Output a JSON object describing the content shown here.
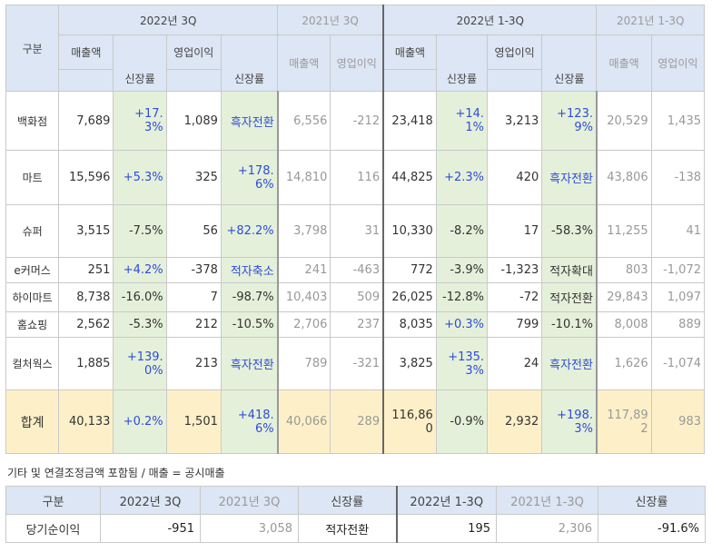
{
  "header": {
    "category": "구분",
    "groups": [
      "2022년 3Q",
      "2021년 3Q",
      "2022년 1-3Q",
      "2021년 1-3Q"
    ],
    "sales": "매출액",
    "op": "영업이익",
    "growth": "신장률"
  },
  "rows": [
    {
      "name": "백화점",
      "v": [
        "7,689",
        "+17.3%",
        "1,089",
        "흑자전환",
        "6,556",
        "-212",
        "23,418",
        "+14.1%",
        "3,213",
        "+123.9%",
        "20,529",
        "1,435"
      ]
    },
    {
      "name": "마트",
      "v": [
        "15,596",
        "+5.3%",
        "325",
        "+178.6%",
        "14,810",
        "116",
        "44,825",
        "+2.3%",
        "420",
        "흑자전환",
        "43,806",
        "-138"
      ]
    },
    {
      "name": "슈퍼",
      "v": [
        "3,515",
        "-7.5%",
        "56",
        "+82.2%",
        "3,798",
        "31",
        "10,330",
        "-8.2%",
        "17",
        "-58.3%",
        "11,255",
        "41"
      ]
    },
    {
      "name": "e커머스",
      "v": [
        "251",
        "+4.2%",
        "-378",
        "적자축소",
        "241",
        "-463",
        "772",
        "-3.9%",
        "-1,323",
        "적자확대",
        "803",
        "-1,072"
      ]
    },
    {
      "name": "하이마트",
      "v": [
        "8,738",
        "-16.0%",
        "7",
        "-98.7%",
        "10,403",
        "509",
        "26,025",
        "-12.8%",
        "-72",
        "적자전환",
        "29,843",
        "1,097"
      ]
    },
    {
      "name": "홈쇼핑",
      "v": [
        "2,562",
        "-5.3%",
        "212",
        "-10.5%",
        "2,706",
        "237",
        "8,035",
        "+0.3%",
        "799",
        "-10.1%",
        "8,008",
        "889"
      ]
    },
    {
      "name": "컬처웍스",
      "v": [
        "1,885",
        "+139.0%",
        "213",
        "흑자전환",
        "789",
        "-321",
        "3,825",
        "+135.3%",
        "24",
        "흑자전환",
        "1,626",
        "-1,074"
      ]
    },
    {
      "name": "합계",
      "v": [
        "40,133",
        "+0.2%",
        "1,501",
        "+418.6%",
        "40,066",
        "289",
        "116,860",
        "-0.9%",
        "2,932",
        "+198.3%",
        "117,892",
        "983"
      ]
    }
  ],
  "note": "기타 및 연결조정금액 포함됨 / 매출 = 공시매출",
  "net": {
    "headers": [
      "구분",
      "2022년 3Q",
      "2021년 3Q",
      "신장률",
      "2022년 1-3Q",
      "2021년 1-3Q",
      "신장률"
    ],
    "values": [
      "당기순이익",
      "-951",
      "3,058",
      "적자전환",
      "195",
      "2,306",
      "-91.6%"
    ]
  },
  "colors": {
    "header_bg": "#dce6f4",
    "growth_bg": "#e5f0da",
    "total_bg": "#fdf0c8",
    "positive_text": "#2e4dd8"
  }
}
